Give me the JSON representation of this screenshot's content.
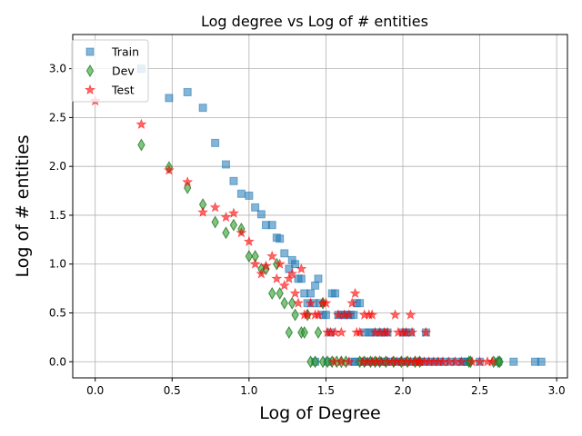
{
  "chart_data": {
    "type": "scatter",
    "title": "Log degree vs Log of # entities",
    "xlabel": "Log of Degree",
    "ylabel": "Log of # entities",
    "xlim": [
      -0.146,
      3.07
    ],
    "ylim": [
      -0.165,
      3.35
    ],
    "xticks": [
      "0.0",
      "0.5",
      "1.0",
      "1.5",
      "2.0",
      "2.5",
      "3.0"
    ],
    "yticks": [
      "0.0",
      "0.5",
      "1.0",
      "1.5",
      "2.0",
      "2.5",
      "3.0"
    ],
    "grid": true,
    "legend_position": "top-left",
    "series": [
      {
        "name": "Train",
        "marker": "square",
        "color": "#1f77b4",
        "x": [
          0.3,
          0.48,
          0.6,
          0.7,
          0.78,
          0.85,
          0.9,
          0.95,
          1.0,
          1.04,
          1.08,
          1.11,
          1.15,
          1.18,
          1.2,
          1.23,
          1.26,
          1.28,
          1.3,
          1.32,
          1.34,
          1.36,
          1.38,
          1.4,
          1.42,
          1.43,
          1.45,
          1.46,
          1.48,
          1.5,
          1.53,
          1.54,
          1.56,
          1.58,
          1.6,
          1.62,
          1.64,
          1.66,
          1.68,
          1.7,
          1.72,
          1.75,
          1.78,
          1.8,
          1.83,
          1.86,
          1.88,
          1.9,
          2.0,
          2.02,
          2.05,
          2.15,
          1.43,
          1.51,
          1.67,
          1.69,
          1.72,
          1.75,
          1.78,
          1.81,
          1.84,
          1.87,
          1.89,
          1.92,
          1.95,
          1.97,
          2.0,
          2.03,
          2.06,
          2.09,
          2.12,
          2.15,
          2.18,
          2.21,
          2.24,
          2.27,
          2.31,
          2.35,
          2.39,
          2.4,
          2.42,
          2.5,
          2.62,
          2.72,
          2.86,
          2.9
        ],
        "y": [
          3.0,
          2.7,
          2.76,
          2.6,
          2.24,
          2.02,
          1.85,
          1.72,
          1.7,
          1.58,
          1.51,
          1.4,
          1.4,
          1.27,
          1.26,
          1.11,
          0.95,
          1.04,
          1.0,
          0.85,
          0.85,
          0.7,
          0.6,
          0.7,
          0.6,
          0.78,
          0.85,
          0.6,
          0.48,
          0.48,
          0.3,
          0.7,
          0.7,
          0.48,
          0.48,
          0.48,
          0.48,
          0.48,
          0.48,
          0.6,
          0.6,
          0.3,
          0.3,
          0.3,
          0.3,
          0.3,
          0.3,
          0.3,
          0.3,
          0.3,
          0.3,
          0.3,
          0.0,
          0.0,
          0.0,
          0.0,
          0.0,
          0.0,
          0.0,
          0.0,
          0.0,
          0.0,
          0.0,
          0.0,
          0.0,
          0.0,
          0.0,
          0.0,
          0.0,
          0.0,
          0.0,
          0.0,
          0.0,
          0.0,
          0.0,
          0.0,
          0.0,
          0.0,
          0.0,
          0.0,
          0.0,
          0.0,
          0.0,
          0.0,
          0.0,
          0.0
        ]
      },
      {
        "name": "Dev",
        "marker": "thin_diamond",
        "color": "#2ca02c",
        "x": [
          0.3,
          0.48,
          0.6,
          0.7,
          0.78,
          0.85,
          0.9,
          0.95,
          1.0,
          1.04,
          1.08,
          1.11,
          1.15,
          1.18,
          1.2,
          1.23,
          1.26,
          1.28,
          1.3,
          1.34,
          1.36,
          1.38,
          1.45,
          1.48,
          1.4,
          1.43,
          1.48,
          1.51,
          1.54,
          1.57,
          1.6,
          1.63,
          1.72,
          1.75,
          1.79,
          1.82,
          1.85,
          1.89,
          1.94,
          1.99,
          2.03,
          2.08,
          2.11,
          2.43,
          2.44,
          2.59,
          2.62,
          2.63
        ],
        "y": [
          2.22,
          1.99,
          1.78,
          1.61,
          1.43,
          1.32,
          1.4,
          1.36,
          1.08,
          1.08,
          0.95,
          0.95,
          0.7,
          1.0,
          0.7,
          0.6,
          0.3,
          0.6,
          0.48,
          0.3,
          0.3,
          0.48,
          0.3,
          0.6,
          0.0,
          0.0,
          0.0,
          0.0,
          0.0,
          0.0,
          0.0,
          0.0,
          0.0,
          0.0,
          0.0,
          0.0,
          0.0,
          0.0,
          0.0,
          0.0,
          0.0,
          0.0,
          0.0,
          0.0,
          0.0,
          0.0,
          0.0,
          0.0
        ]
      },
      {
        "name": "Test",
        "marker": "star",
        "color": "#ff0000",
        "x": [
          0.0,
          0.3,
          0.48,
          0.6,
          0.7,
          0.78,
          0.85,
          0.9,
          0.95,
          1.0,
          1.04,
          1.08,
          1.11,
          1.15,
          1.18,
          1.2,
          1.23,
          1.26,
          1.28,
          1.3,
          1.32,
          1.34,
          1.36,
          1.38,
          1.4,
          1.43,
          1.45,
          1.48,
          1.5,
          1.51,
          1.53,
          1.56,
          1.58,
          1.6,
          1.62,
          1.65,
          1.67,
          1.69,
          1.7,
          1.72,
          1.75,
          1.78,
          1.8,
          1.82,
          1.85,
          1.88,
          1.9,
          1.95,
          1.97,
          2.0,
          2.02,
          2.05,
          2.06,
          2.1,
          2.15,
          1.55,
          1.6,
          1.65,
          1.74,
          1.77,
          1.8,
          1.83,
          1.86,
          1.9,
          1.93,
          1.96,
          1.99,
          2.02,
          2.05,
          2.08,
          2.11,
          2.14,
          2.17,
          2.2,
          2.23,
          2.26,
          2.3,
          2.34,
          2.38,
          2.45,
          2.5,
          2.55,
          2.58
        ],
        "y": [
          2.67,
          2.43,
          1.96,
          1.84,
          1.53,
          1.58,
          1.48,
          1.52,
          1.32,
          1.23,
          1.0,
          0.9,
          0.98,
          1.08,
          0.85,
          1.0,
          0.78,
          0.85,
          0.9,
          0.7,
          0.6,
          0.95,
          0.48,
          0.48,
          0.6,
          0.48,
          0.48,
          0.6,
          0.6,
          0.3,
          0.3,
          0.3,
          0.48,
          0.3,
          0.48,
          0.48,
          0.6,
          0.7,
          0.3,
          0.3,
          0.48,
          0.48,
          0.48,
          0.3,
          0.3,
          0.3,
          0.3,
          0.48,
          0.3,
          0.3,
          0.3,
          0.48,
          0.3,
          0.0,
          0.3,
          0.0,
          0.0,
          0.0,
          0.0,
          0.0,
          0.0,
          0.0,
          0.0,
          0.0,
          0.0,
          0.0,
          0.0,
          0.0,
          0.0,
          0.0,
          0.0,
          0.0,
          0.0,
          0.0,
          0.0,
          0.0,
          0.0,
          0.0,
          0.0,
          0.0,
          0.0,
          0.0,
          0.0
        ]
      }
    ]
  }
}
